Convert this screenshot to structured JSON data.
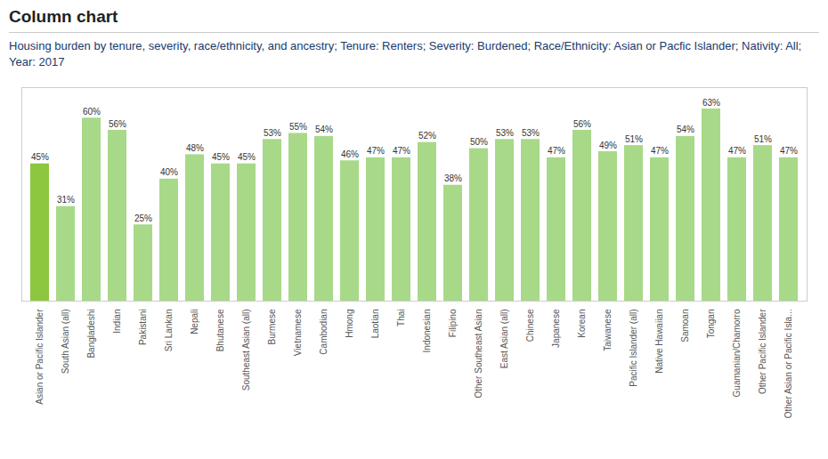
{
  "chart_data": {
    "type": "bar",
    "title": "Column chart",
    "subtitle": "Housing burden by tenure, severity, race/ethnicity, and ancestry; Tenure: Renters; Severity: Burdened; Race/Ethnicity: Asian or Pacfic Islander; Nativity: All; Year: 2017",
    "categories": [
      "Asian or Pacific Islander",
      "South Asian (all)",
      "Bangladeshi",
      "Indian",
      "Pakistani",
      "Sri Lankan",
      "Nepali",
      "Bhutanese",
      "Southeast Asian (all)",
      "Burmese",
      "Vietnamese",
      "Cambodian",
      "Hmong",
      "Laotian",
      "Thai",
      "Indonesian",
      "Filipino",
      "Other Southeast Asian",
      "East Asian (all)",
      "Chinese",
      "Japanese",
      "Korean",
      "Taiwanese",
      "Pacific Islander (all)",
      "Native Hawaiian",
      "Samoan",
      "Tongan",
      "Guamanian/Chamorro",
      "Other Pacific Islander",
      "Other Asian or Pacific Isla..."
    ],
    "values": [
      45,
      31,
      60,
      56,
      25,
      40,
      48,
      45,
      45,
      53,
      55,
      54,
      46,
      47,
      47,
      52,
      38,
      50,
      53,
      53,
      47,
      56,
      49,
      51,
      47,
      54,
      63,
      47,
      51,
      47
    ],
    "value_labels": [
      "45%",
      "31%",
      "60%",
      "56%",
      "25%",
      "40%",
      "48%",
      "45%",
      "45%",
      "53%",
      "55%",
      "54%",
      "46%",
      "47%",
      "47%",
      "52%",
      "38%",
      "50%",
      "53%",
      "53%",
      "47%",
      "56%",
      "49%",
      "51%",
      "47%",
      "54%",
      "63%",
      "47%",
      "51%",
      "47%"
    ],
    "colors": [
      "#8dc63f",
      "#a8d988",
      "#a8d988",
      "#a8d988",
      "#a8d988",
      "#a8d988",
      "#a8d988",
      "#a8d988",
      "#a8d988",
      "#a8d988",
      "#a8d988",
      "#a8d988",
      "#a8d988",
      "#a8d988",
      "#a8d988",
      "#a8d988",
      "#a8d988",
      "#a8d988",
      "#a8d988",
      "#a8d988",
      "#a8d988",
      "#a8d988",
      "#a8d988",
      "#a8d988",
      "#a8d988",
      "#a8d988",
      "#a8d988",
      "#a8d988",
      "#a8d988",
      "#a8d988"
    ],
    "ylim": [
      0,
      70
    ],
    "grid": false,
    "data_labels": true,
    "tick_labels": "x"
  }
}
